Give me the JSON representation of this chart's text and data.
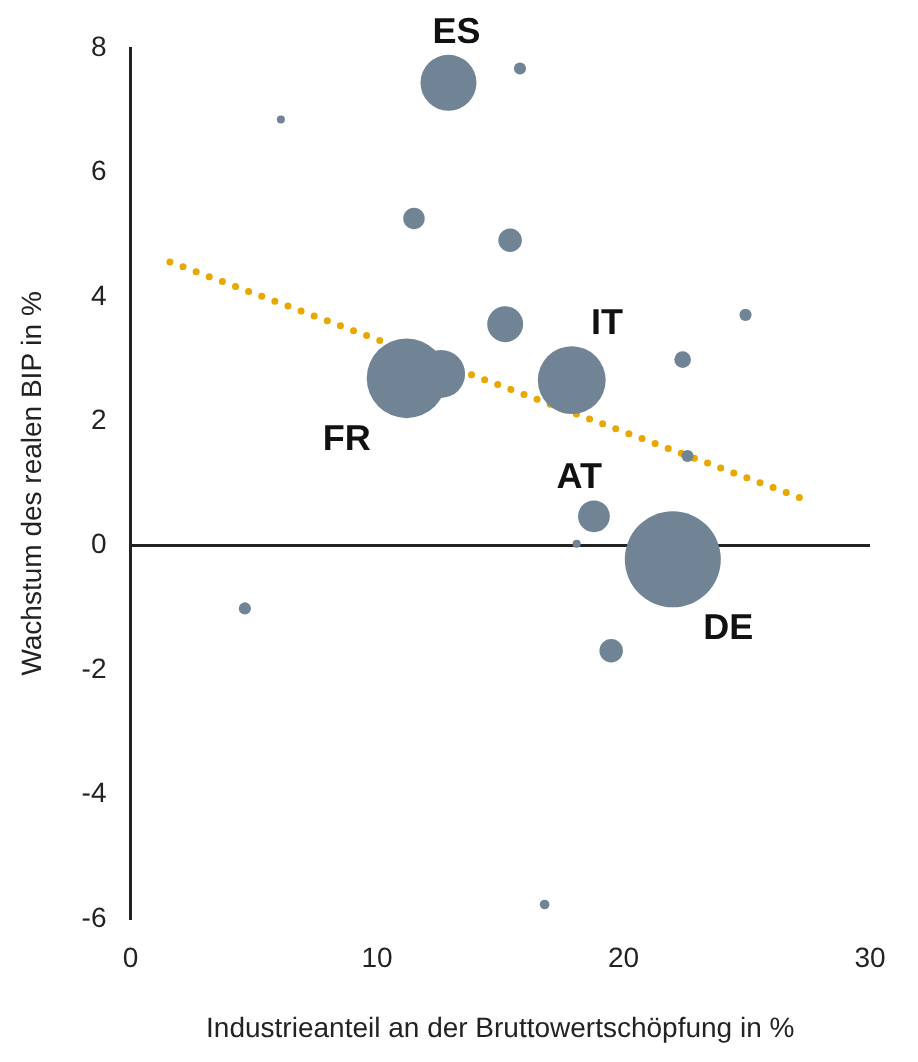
{
  "chart_data": {
    "type": "bubble",
    "xlabel": "Industrieanteil an der Bruttowertschöpfung in %",
    "ylabel": "Wachstum des realen BIP in %",
    "xlim": [
      0,
      30
    ],
    "xticks": [
      0,
      10,
      20,
      30
    ],
    "ylim": [
      -6,
      8
    ],
    "yticks": [
      -6,
      -4,
      -2,
      0,
      2,
      4,
      6,
      8
    ],
    "grid": false,
    "legend": false,
    "series": [
      {
        "color": "#718496",
        "x": [
          12.9,
          15.8,
          6.1,
          11.5,
          15.4,
          24.95,
          15.2,
          11.2,
          12.6,
          17.9,
          22.4,
          22.6,
          18.8,
          18.1,
          22.0,
          4.64,
          19.5,
          16.8
        ],
        "values": [
          7.44,
          7.67,
          6.85,
          5.26,
          4.91,
          3.71,
          3.56,
          2.69,
          2.76,
          2.66,
          2.99,
          1.44,
          0.47,
          0.03,
          -0.22,
          -1.01,
          -1.69,
          -5.77
        ],
        "sizes": [
          0.34,
          0.016,
          0.007,
          0.05,
          0.06,
          0.016,
          0.14,
          0.69,
          0.25,
          0.5,
          0.03,
          0.016,
          0.11,
          0.007,
          1,
          0.016,
          0.06,
          0.01
        ]
      },
      {
        "type": "line",
        "color": "#e8a800",
        "line_style": "dotted",
        "marker": "none",
        "x": [
          1.6,
          27.5
        ],
        "values": [
          4.56,
          0.72
        ]
      }
    ],
    "ref_lines": [
      {
        "axis": "y",
        "value": 0,
        "color": "#222222"
      }
    ],
    "annotations": [
      {
        "text": "ES",
        "x": 12.9,
        "y": 7.44
      },
      {
        "text": "FR",
        "x": 11.2,
        "y": 2.69
      },
      {
        "text": "IT",
        "x": 17.9,
        "y": 2.66
      },
      {
        "text": "AT",
        "x": 18.8,
        "y": 0.47
      },
      {
        "text": "DE",
        "x": 22.0,
        "y": -0.22
      }
    ]
  }
}
